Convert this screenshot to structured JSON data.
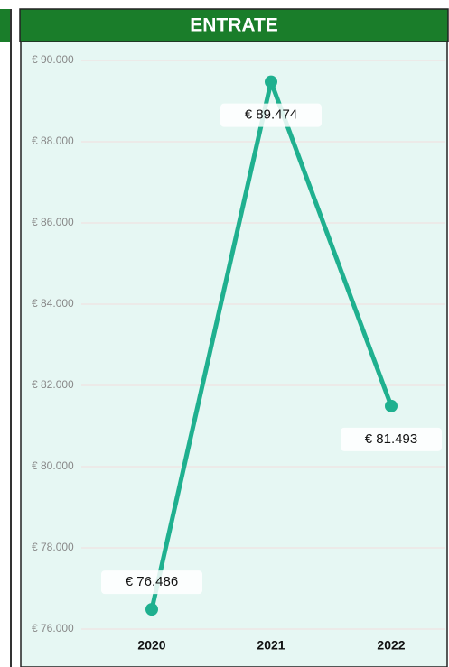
{
  "chart_data": {
    "type": "line",
    "title": "ENTRATE",
    "categories": [
      "2020",
      "2021",
      "2022"
    ],
    "series": [
      {
        "name": "ENTRATE",
        "color": "#1fb08f",
        "values": [
          76486,
          89474,
          81493
        ],
        "value_labels": [
          "€ 76.486",
          "€ 89.474",
          "€ 81.493"
        ]
      }
    ],
    "ylim": [
      76000,
      90000
    ],
    "yticks": [
      {
        "value": 76000,
        "label": "€ 76.000"
      },
      {
        "value": 78000,
        "label": "€ 78.000"
      },
      {
        "value": 80000,
        "label": "€ 80.000"
      },
      {
        "value": 82000,
        "label": "€ 82.000"
      },
      {
        "value": 84000,
        "label": "€ 84.000"
      },
      {
        "value": 86000,
        "label": "€ 86.000"
      },
      {
        "value": 88000,
        "label": "€ 88.000"
      },
      {
        "value": 90000,
        "label": "€ 90.000"
      }
    ],
    "grid": true
  }
}
